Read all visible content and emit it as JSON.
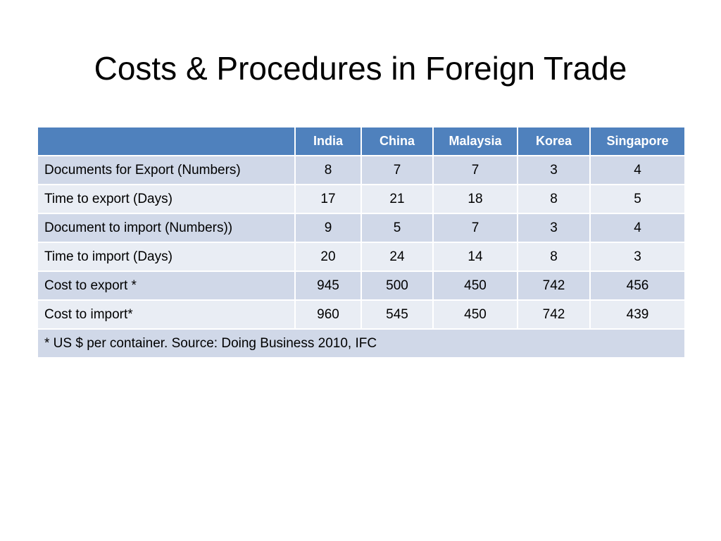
{
  "title": "Costs & Procedures in Foreign Trade",
  "colors": {
    "header_bg": "#4f81bd",
    "row_dark": "#d0d8e8",
    "row_light": "#e9edf4"
  },
  "table": {
    "columns": [
      "",
      "India",
      "China",
      "Malaysia",
      "Korea",
      "Singapore"
    ],
    "rows": [
      {
        "label": "Documents for Export (Numbers)",
        "values": [
          "8",
          "7",
          "7",
          "3",
          "4"
        ]
      },
      {
        "label": "Time to export (Days)",
        "values": [
          "17",
          "21",
          "18",
          "8",
          "5"
        ]
      },
      {
        "label": "Document to import (Numbers))",
        "values": [
          "9",
          "5",
          "7",
          "3",
          "4"
        ]
      },
      {
        "label": "Time to import (Days)",
        "values": [
          "20",
          "24",
          "14",
          "8",
          "3"
        ]
      },
      {
        "label": "Cost to export *",
        "values": [
          "945",
          "500",
          "450",
          "742",
          "456"
        ]
      },
      {
        "label": "Cost to import*",
        "values": [
          "960",
          "545",
          "450",
          "742",
          "439"
        ]
      }
    ],
    "footnote": "* US $ per container. Source: Doing Business 2010, IFC"
  }
}
